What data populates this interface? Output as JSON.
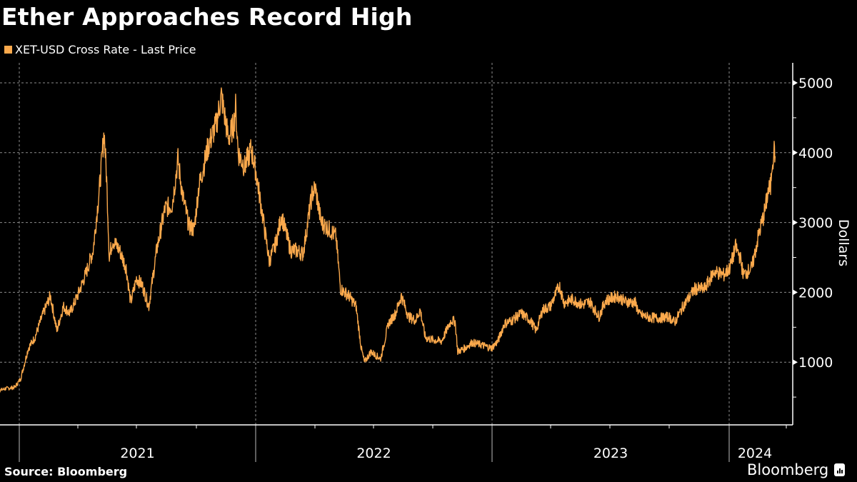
{
  "header": {
    "title": "Ether Approaches Record High",
    "legend_label": "XET-USD Cross Rate - Last Price",
    "legend_color": "#FBA94C"
  },
  "footer": {
    "source": "Source: Bloomberg",
    "brand": "Bloomberg",
    "brand_icon": "bloomberg-chart-icon"
  },
  "colors": {
    "background": "#000000",
    "line": "#FBA94C",
    "axis": "#FFFFFF",
    "grid": "#8C8C8C"
  },
  "chart_data": {
    "type": "line",
    "title": "Ether Approaches Record High",
    "xlabel": "",
    "ylabel": "Dollars",
    "ylim": [
      0,
      5200
    ],
    "yticks": [
      1000,
      2000,
      3000,
      4000,
      5000
    ],
    "ytick_labels": [
      "1000",
      "2000",
      "3000",
      "4000",
      "5000"
    ],
    "xtick_labels": [
      "2021",
      "2022",
      "2023",
      "2024"
    ],
    "x_range": [
      "2020-11",
      "2024-03"
    ],
    "grid": true,
    "legend_position": "top-left",
    "series": [
      {
        "name": "XET-USD Cross Rate - Last Price",
        "color": "#FBA94C",
        "points": [
          [
            "2020-11-01",
            600
          ],
          [
            "2020-11-20",
            560
          ],
          [
            "2020-12-10",
            620
          ],
          [
            "2020-12-25",
            640
          ],
          [
            "2021-01-03",
            760
          ],
          [
            "2021-01-15",
            1200
          ],
          [
            "2021-01-25",
            1350
          ],
          [
            "2021-02-05",
            1650
          ],
          [
            "2021-02-18",
            1950
          ],
          [
            "2021-02-28",
            1450
          ],
          [
            "2021-03-10",
            1800
          ],
          [
            "2021-03-20",
            1700
          ],
          [
            "2021-04-01",
            1950
          ],
          [
            "2021-04-15",
            2300
          ],
          [
            "2021-04-25",
            2600
          ],
          [
            "2021-05-05",
            3500
          ],
          [
            "2021-05-12",
            4300
          ],
          [
            "2021-05-16",
            3600
          ],
          [
            "2021-05-20",
            2500
          ],
          [
            "2021-05-25",
            2750
          ],
          [
            "2021-06-05",
            2600
          ],
          [
            "2021-06-15",
            2350
          ],
          [
            "2021-06-22",
            1850
          ],
          [
            "2021-07-01",
            2200
          ],
          [
            "2021-07-10",
            2100
          ],
          [
            "2021-07-20",
            1800
          ],
          [
            "2021-08-01",
            2600
          ],
          [
            "2021-08-14",
            3200
          ],
          [
            "2021-08-25",
            3250
          ],
          [
            "2021-09-03",
            3900
          ],
          [
            "2021-09-10",
            3400
          ],
          [
            "2021-09-20",
            2950
          ],
          [
            "2021-09-28",
            2900
          ],
          [
            "2021-10-05",
            3500
          ],
          [
            "2021-10-20",
            4100
          ],
          [
            "2021-11-01",
            4400
          ],
          [
            "2021-11-09",
            4810
          ],
          [
            "2021-11-20",
            4200
          ],
          [
            "2021-11-28",
            4400
          ],
          [
            "2021-12-01",
            4650
          ],
          [
            "2021-12-05",
            4000
          ],
          [
            "2021-12-15",
            3800
          ],
          [
            "2021-12-25",
            4050
          ],
          [
            "2022-01-01",
            3750
          ],
          [
            "2022-01-10",
            3200
          ],
          [
            "2022-01-22",
            2450
          ],
          [
            "2022-02-01",
            2700
          ],
          [
            "2022-02-10",
            3100
          ],
          [
            "2022-02-24",
            2600
          ],
          [
            "2022-03-05",
            2600
          ],
          [
            "2022-03-15",
            2550
          ],
          [
            "2022-03-29",
            3400
          ],
          [
            "2022-04-03",
            3500
          ],
          [
            "2022-04-12",
            3000
          ],
          [
            "2022-04-25",
            2900
          ],
          [
            "2022-05-05",
            2800
          ],
          [
            "2022-05-12",
            2050
          ],
          [
            "2022-05-25",
            1950
          ],
          [
            "2022-06-05",
            1800
          ],
          [
            "2022-06-13",
            1200
          ],
          [
            "2022-06-18",
            1000
          ],
          [
            "2022-06-28",
            1150
          ],
          [
            "2022-07-05",
            1100
          ],
          [
            "2022-07-13",
            1050
          ],
          [
            "2022-07-25",
            1550
          ],
          [
            "2022-08-05",
            1700
          ],
          [
            "2022-08-14",
            1950
          ],
          [
            "2022-08-25",
            1650
          ],
          [
            "2022-09-05",
            1600
          ],
          [
            "2022-09-12",
            1750
          ],
          [
            "2022-09-20",
            1350
          ],
          [
            "2022-10-01",
            1320
          ],
          [
            "2022-10-15",
            1300
          ],
          [
            "2022-10-30",
            1600
          ],
          [
            "2022-11-05",
            1580
          ],
          [
            "2022-11-09",
            1150
          ],
          [
            "2022-11-20",
            1200
          ],
          [
            "2022-12-01",
            1280
          ],
          [
            "2022-12-15",
            1250
          ],
          [
            "2022-12-31",
            1200
          ],
          [
            "2023-01-10",
            1300
          ],
          [
            "2023-01-20",
            1550
          ],
          [
            "2023-02-01",
            1600
          ],
          [
            "2023-02-15",
            1700
          ],
          [
            "2023-03-01",
            1600
          ],
          [
            "2023-03-10",
            1450
          ],
          [
            "2023-03-20",
            1750
          ],
          [
            "2023-04-01",
            1800
          ],
          [
            "2023-04-15",
            2100
          ],
          [
            "2023-04-22",
            1850
          ],
          [
            "2023-05-05",
            1900
          ],
          [
            "2023-05-20",
            1820
          ],
          [
            "2023-06-01",
            1870
          ],
          [
            "2023-06-15",
            1650
          ],
          [
            "2023-06-25",
            1880
          ],
          [
            "2023-07-13",
            1950
          ],
          [
            "2023-07-25",
            1870
          ],
          [
            "2023-08-10",
            1850
          ],
          [
            "2023-08-17",
            1680
          ],
          [
            "2023-09-01",
            1640
          ],
          [
            "2023-09-15",
            1630
          ],
          [
            "2023-10-01",
            1650
          ],
          [
            "2023-10-10",
            1570
          ],
          [
            "2023-10-23",
            1800
          ],
          [
            "2023-11-10",
            2050
          ],
          [
            "2023-11-25",
            2050
          ],
          [
            "2023-12-10",
            2300
          ],
          [
            "2023-12-25",
            2250
          ],
          [
            "2024-01-02",
            2350
          ],
          [
            "2024-01-11",
            2650
          ],
          [
            "2024-01-18",
            2500
          ],
          [
            "2024-01-23",
            2250
          ],
          [
            "2024-02-05",
            2350
          ],
          [
            "2024-02-15",
            2800
          ],
          [
            "2024-02-26",
            3200
          ],
          [
            "2024-03-01",
            3450
          ],
          [
            "2024-03-05",
            3500
          ],
          [
            "2024-03-07",
            3850
          ],
          [
            "2024-03-11",
            4050
          ],
          [
            "2024-03-12",
            3950
          ]
        ]
      }
    ]
  }
}
